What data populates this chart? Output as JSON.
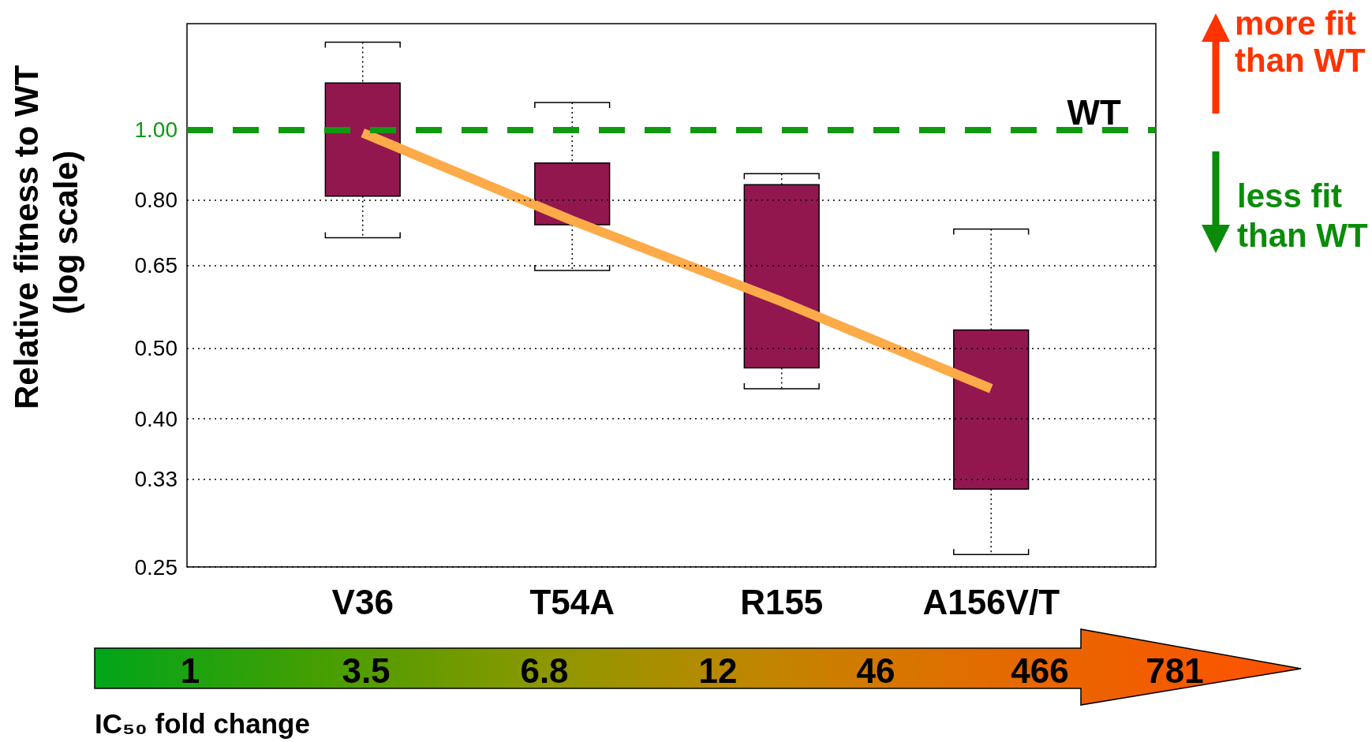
{
  "chart_data": {
    "type": "box",
    "categories": [
      "V36",
      "T54A",
      "R155",
      "A156V/T"
    ],
    "series": [
      {
        "color": "#93174f",
        "boxes": [
          {
            "low": 0.71,
            "q1": 0.81,
            "q3": 1.16,
            "high": 1.32
          },
          {
            "low": 0.64,
            "q1": 0.74,
            "q3": 0.9,
            "high": 1.09
          },
          {
            "low": 0.44,
            "q1": 0.47,
            "q3": 0.84,
            "high": 0.87
          },
          {
            "low": 0.26,
            "q1": 0.32,
            "q3": 0.53,
            "high": 0.73
          }
        ]
      },
      {
        "type": "line",
        "color": "#fdaa48",
        "values": [
          0.99,
          0.75,
          0.58,
          0.44
        ]
      }
    ],
    "ylabel": "Relative fitness to WT (log scale)",
    "log": true,
    "ylim": [
      0.25,
      1.4
    ],
    "yticks": [
      0.25,
      0.33,
      {
        "value": 0.4,
        "label": "0.40"
      },
      {
        "value": 0.5,
        "label": "0.50"
      },
      0.65,
      {
        "value": 0.8,
        "label": "0.80"
      },
      {
        "value": 1,
        "label": "1.00"
      }
    ],
    "grid": "y",
    "ref_lines": [
      {
        "axis": "y",
        "value": 1,
        "label": "WT",
        "color": "#0f990f",
        "line_style": "dashed"
      }
    ],
    "annotations": [
      "more fit than WT",
      "less fit than WT",
      "1",
      "3.5",
      "6.8",
      "12",
      "46",
      "466",
      "781",
      "IC₅₀ fold change"
    ]
  }
}
